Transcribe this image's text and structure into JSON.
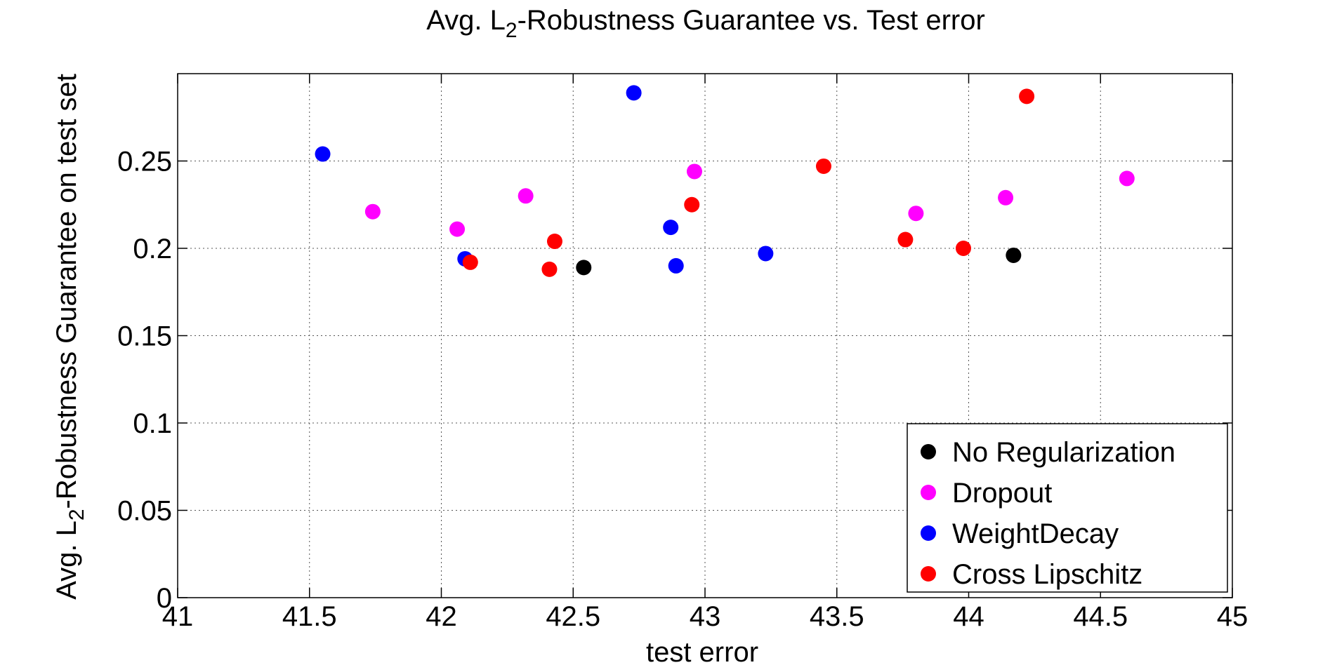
{
  "chart_data": {
    "type": "scatter",
    "title": {
      "prefix": "Avg. L",
      "subscript": "2",
      "suffix": "-Robustness Guarantee vs. Test error"
    },
    "xlabel": "test error",
    "ylabel": {
      "prefix": "Avg. L",
      "subscript": "2",
      "suffix": "-Robustness Guarantee on test set"
    },
    "xlim": [
      41,
      45
    ],
    "ylim": [
      0,
      0.3
    ],
    "x_ticks": [
      41,
      41.5,
      42,
      42.5,
      43,
      43.5,
      44,
      44.5,
      45
    ],
    "x_tick_labels": [
      "41",
      "41.5",
      "42",
      "42.5",
      "43",
      "43.5",
      "44",
      "44.5",
      "45"
    ],
    "y_ticks": [
      0,
      0.05,
      0.1,
      0.15,
      0.2,
      0.25
    ],
    "y_tick_labels": [
      "0",
      "0.05",
      "0.1",
      "0.15",
      "0.2",
      "0.25"
    ],
    "grid": true,
    "legend_position": "bottom-right",
    "series": [
      {
        "name": "No Regularization",
        "color": "#000000",
        "points": [
          {
            "x": 42.54,
            "y": 0.189
          },
          {
            "x": 44.17,
            "y": 0.196
          }
        ]
      },
      {
        "name": "Dropout",
        "color": "#ff00ff",
        "points": [
          {
            "x": 41.74,
            "y": 0.221
          },
          {
            "x": 42.06,
            "y": 0.211
          },
          {
            "x": 42.32,
            "y": 0.23
          },
          {
            "x": 42.96,
            "y": 0.244
          },
          {
            "x": 43.8,
            "y": 0.22
          },
          {
            "x": 44.14,
            "y": 0.229
          },
          {
            "x": 44.6,
            "y": 0.24
          }
        ]
      },
      {
        "name": "WeightDecay",
        "color": "#0000ff",
        "points": [
          {
            "x": 41.55,
            "y": 0.254
          },
          {
            "x": 42.09,
            "y": 0.194
          },
          {
            "x": 42.73,
            "y": 0.289
          },
          {
            "x": 42.87,
            "y": 0.212
          },
          {
            "x": 42.89,
            "y": 0.19
          },
          {
            "x": 43.23,
            "y": 0.197
          }
        ]
      },
      {
        "name": "Cross Lipschitz",
        "color": "#ff0000",
        "points": [
          {
            "x": 42.11,
            "y": 0.192
          },
          {
            "x": 42.41,
            "y": 0.188
          },
          {
            "x": 42.43,
            "y": 0.204
          },
          {
            "x": 42.95,
            "y": 0.225
          },
          {
            "x": 43.45,
            "y": 0.247
          },
          {
            "x": 43.76,
            "y": 0.205
          },
          {
            "x": 43.98,
            "y": 0.2
          },
          {
            "x": 44.22,
            "y": 0.287
          }
        ]
      }
    ]
  }
}
